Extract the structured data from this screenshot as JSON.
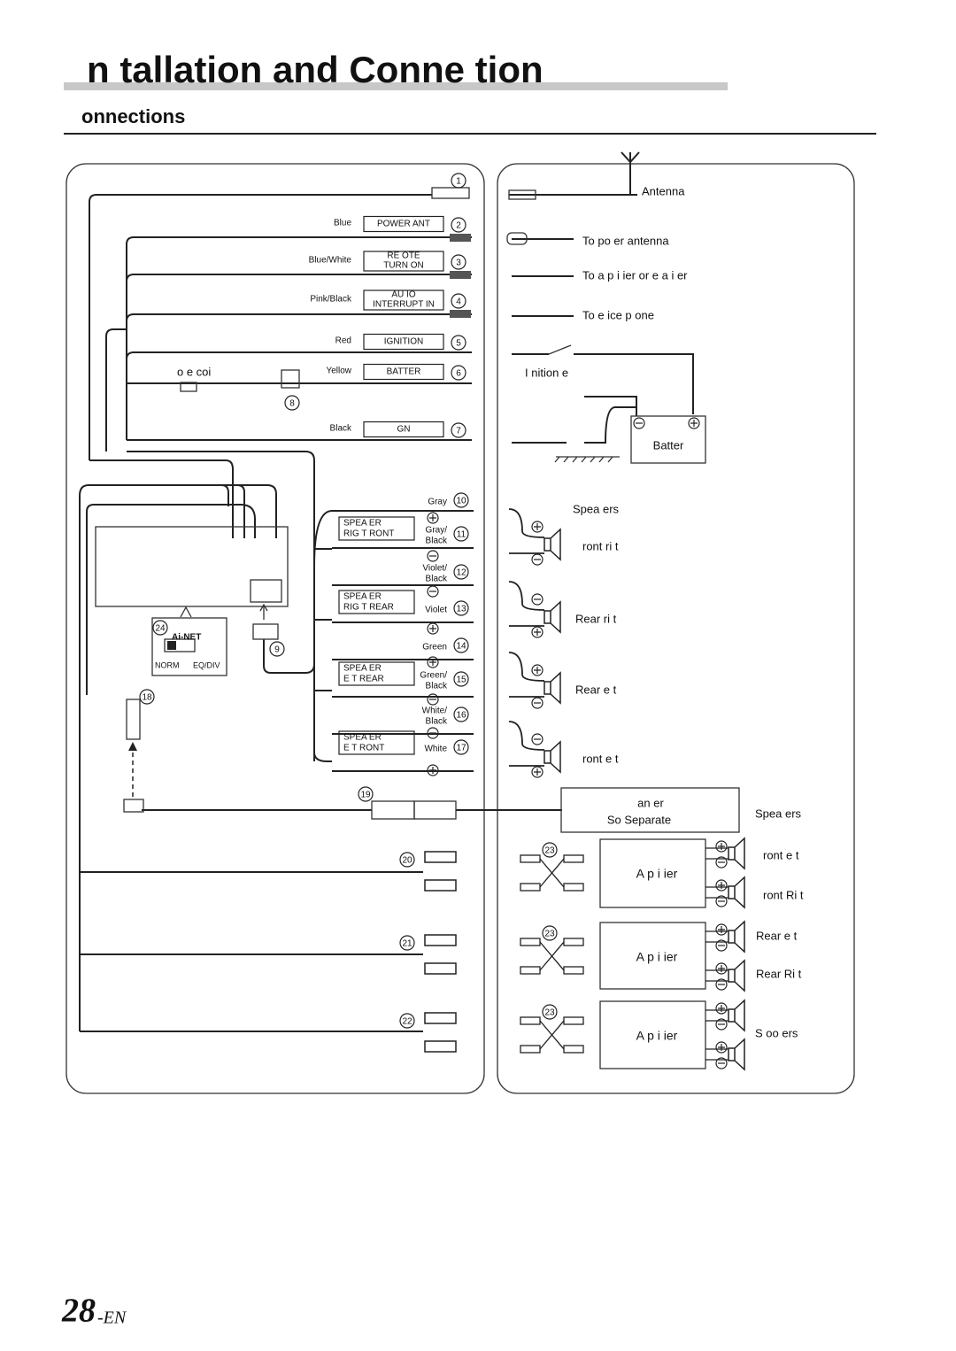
{
  "header": {
    "title": "n tallation and Conne tion",
    "section": "onnections"
  },
  "unit": {
    "wires": [
      {
        "number": "1"
      },
      {
        "number": "2",
        "color": "Blue",
        "label": [
          "POWER ANT"
        ]
      },
      {
        "number": "3",
        "color": "Blue/White",
        "label": [
          "RE OTE",
          "TURN ON"
        ]
      },
      {
        "number": "4",
        "color": "Pink/Black",
        "label": [
          "AU IO",
          "INTERRUPT IN"
        ]
      },
      {
        "number": "5",
        "color": "Red",
        "label": [
          "IGNITION"
        ]
      },
      {
        "number": "6",
        "color": "Yellow",
        "label": [
          "BATTER"
        ]
      },
      {
        "number": "7",
        "color": "Black",
        "label": [
          "GN"
        ]
      }
    ],
    "fuse_label": "o e coi",
    "fuse_number": "8",
    "connector_number": "9",
    "speaker_wires": [
      {
        "number": "10",
        "color": [
          "Gray"
        ]
      },
      {
        "number": "11",
        "color": [
          "Gray/",
          "Black"
        ]
      },
      {
        "number": "12",
        "color": [
          "Violet/",
          "Black"
        ]
      },
      {
        "number": "13",
        "color": [
          "Violet"
        ]
      },
      {
        "number": "14",
        "color": [
          "Green"
        ]
      },
      {
        "number": "15",
        "color": [
          "Green/",
          "Black"
        ]
      },
      {
        "number": "16",
        "color": [
          "White/",
          "Black"
        ]
      },
      {
        "number": "17",
        "color": [
          "White"
        ]
      }
    ],
    "speaker_boxes": [
      [
        "SPEA ER",
        "RIG T RONT"
      ],
      [
        "SPEA ER",
        "RIG T REAR"
      ],
      [
        "SPEA ER",
        "E T REAR"
      ],
      [
        "SPEA ER",
        "E T RONT"
      ]
    ],
    "ai_net": {
      "number": "24",
      "label": "Ai-NET",
      "left": "NORM",
      "right": "EQ/DIV"
    },
    "cable_numbers": [
      "18",
      "19"
    ],
    "rca_numbers": [
      "20",
      "21",
      "22"
    ]
  },
  "connections": {
    "antenna": "Antenna",
    "power_antenna": "To po er antenna",
    "amplifier": "To a p i ier or e a i er",
    "phone": "To e ice p one",
    "ignition": "I nition e",
    "battery": "Batter",
    "speakers_title": "Spea ers",
    "speakers": [
      "ront ri t",
      "Rear ri t",
      "Rear e t",
      "ront e t"
    ],
    "changer": [
      "an er",
      "So Separate"
    ],
    "amp_speakers_title": "Spea ers",
    "amp_number": "23",
    "amplifiers": [
      "A p i ier",
      "A p i ier",
      "A p i ier"
    ],
    "amp_outputs": [
      "ront e t",
      "ront Ri t",
      "Rear e t",
      "Rear Ri t",
      "S oo ers"
    ]
  },
  "footer": {
    "page": "28",
    "suffix": "-EN"
  }
}
